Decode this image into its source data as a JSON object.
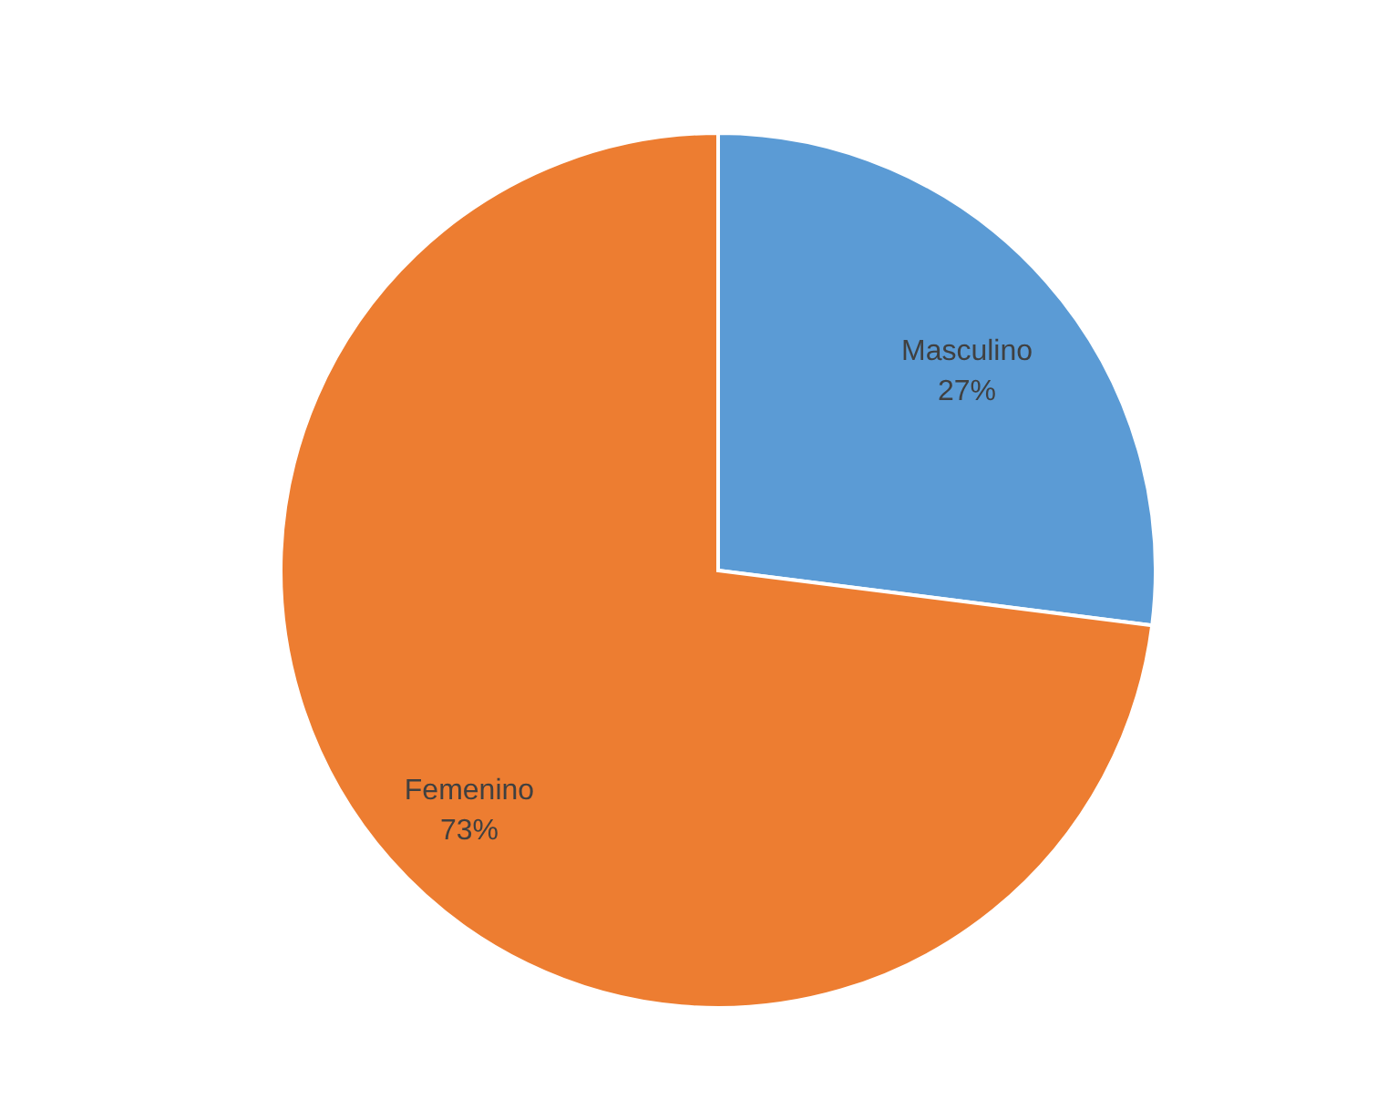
{
  "chart_data": {
    "type": "pie",
    "categories": [
      "Masculino",
      "Femenino"
    ],
    "values": [
      27,
      73
    ],
    "colors": [
      "#5b9bd5",
      "#ed7d31"
    ],
    "value_labels": [
      "27%",
      "73%"
    ],
    "legend": false
  }
}
